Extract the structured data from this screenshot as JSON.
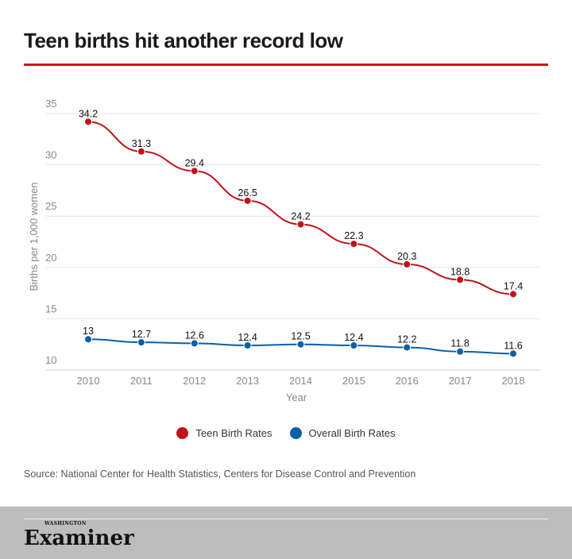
{
  "title": "Teen births hit another record low",
  "chart_data": {
    "type": "line",
    "categories": [
      "2010",
      "2011",
      "2012",
      "2013",
      "2014",
      "2015",
      "2016",
      "2017",
      "2018"
    ],
    "series": [
      {
        "name": "Teen Birth Rates",
        "color": "#c0121b",
        "values": [
          34.2,
          31.3,
          29.4,
          26.5,
          24.2,
          22.3,
          20.3,
          18.8,
          17.4
        ]
      },
      {
        "name": "Overall Birth Rates",
        "color": "#0a5fa8",
        "values": [
          13,
          12.7,
          12.6,
          12.4,
          12.5,
          12.4,
          12.2,
          11.8,
          11.6
        ]
      }
    ],
    "xlabel": "Year",
    "ylabel": "Births per 1,000 women",
    "ylim": [
      10,
      35
    ],
    "yticks": [
      "10",
      "15",
      "20",
      "25",
      "30",
      "35"
    ],
    "grid": true,
    "legend": "bottom"
  },
  "source": "Source: National Center for Health Statistics, Centers for Disease Control and Prevention",
  "footer": {
    "logo_small": "WASHINGTON",
    "logo_big": "Examiner"
  }
}
